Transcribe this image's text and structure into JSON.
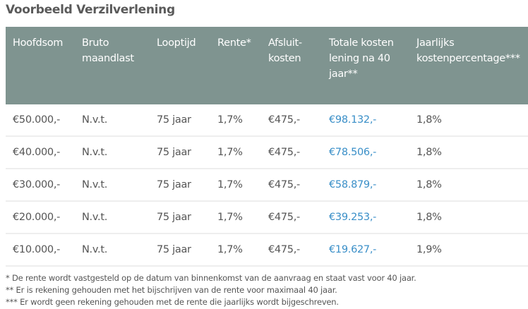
{
  "title": "Voorbeeld Verzilverlening",
  "colors": {
    "header_bg": "#7f9490",
    "link_value": "#3a8fc8"
  },
  "table": {
    "headers": [
      "Hoofdsom",
      "Bruto maandlast",
      "Looptijd",
      "Rente*",
      "Afsluit-kosten",
      "Totale kosten lening na 40 jaar**",
      "Jaarlijks kostenpercentage***"
    ],
    "rows": [
      [
        "€50.000,-",
        "N.v.t.",
        "75 jaar",
        "1,7%",
        "€475,-",
        "€98.132,-",
        "1,8%"
      ],
      [
        "€40.000,-",
        "N.v.t.",
        "75 jaar",
        "1,7%",
        "€475,-",
        "€78.506,-",
        "1,8%"
      ],
      [
        "€30.000,-",
        "N.v.t.",
        "75 jaar",
        "1,7%",
        "€475,-",
        "€58.879,-",
        "1,8%"
      ],
      [
        "€20.000,-",
        "N.v.t.",
        "75 jaar",
        "1,7%",
        "€475,-",
        "€39.253,-",
        "1,8%"
      ],
      [
        "€10.000,-",
        "N.v.t.",
        "75 jaar",
        "1,7%",
        "€475,-",
        "€19.627,-",
        "1,9%"
      ]
    ]
  },
  "footnotes": [
    "* De rente wordt vastgesteld op de datum van binnenkomst van de aanvraag en staat vast voor 40 jaar.",
    "** Er is rekening gehouden met het bijschrijven van de rente voor maximaal 40 jaar.",
    "*** Er wordt geen rekening gehouden met de rente die jaarlijks wordt bijgeschreven."
  ]
}
